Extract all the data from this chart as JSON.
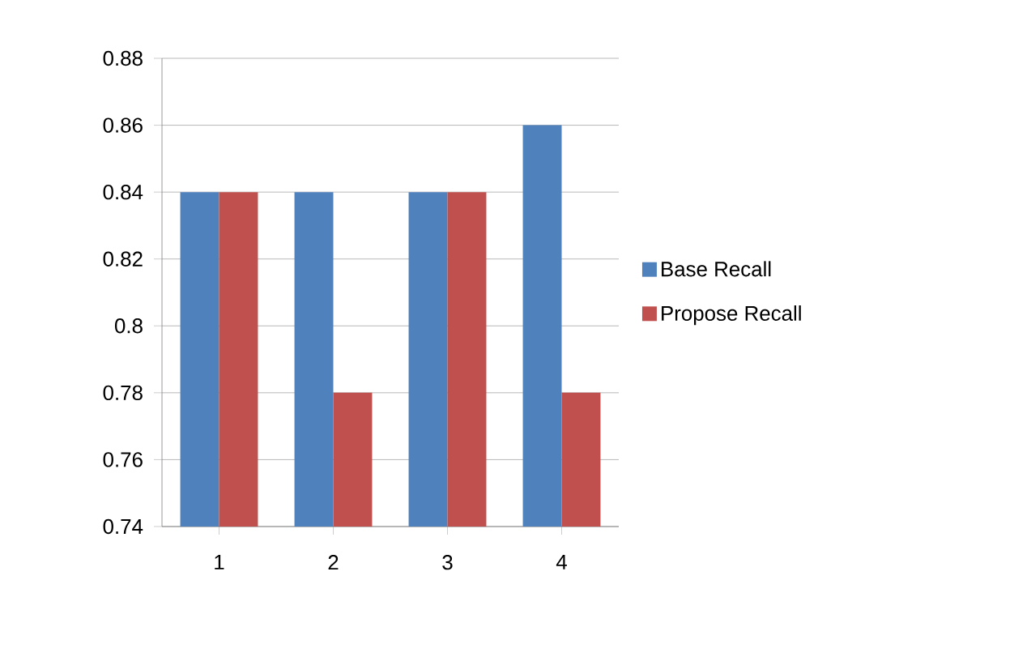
{
  "chart_data": {
    "type": "bar",
    "categories": [
      "1",
      "2",
      "3",
      "4"
    ],
    "series": [
      {
        "name": "Base Recall",
        "color": "#4f81bd",
        "values": [
          0.84,
          0.84,
          0.84,
          0.86
        ]
      },
      {
        "name": "Propose Recall",
        "color": "#c0504d",
        "values": [
          0.84,
          0.78,
          0.84,
          0.78
        ]
      }
    ],
    "ylim": [
      0.74,
      0.88
    ],
    "yticks": [
      0.74,
      0.76,
      0.78,
      0.8,
      0.82,
      0.84,
      0.86,
      0.88
    ],
    "grid": "y",
    "legend": "right"
  }
}
